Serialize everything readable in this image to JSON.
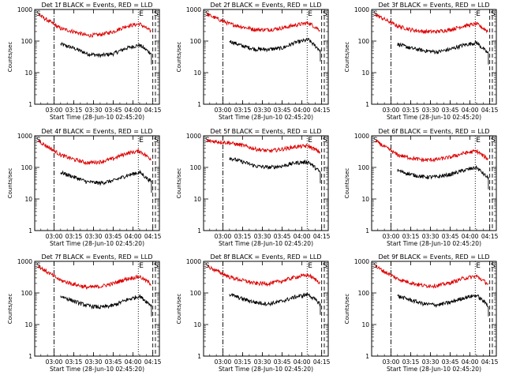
{
  "colors": {
    "events": "#000000",
    "lld": "#dd0000",
    "axis": "#000000",
    "background": "#ffffff"
  },
  "x_axis": {
    "start": "02:45:20",
    "end": "04:20",
    "ticks": [
      "03:00",
      "03:15",
      "03:30",
      "03:45",
      "04:00",
      "04:15"
    ]
  },
  "y_axis": {
    "scale": "log",
    "range": [
      1,
      1000
    ],
    "ticks": [
      "1",
      "10",
      "100",
      "1000"
    ]
  },
  "markers": {
    "left": "S",
    "right_inner": "E",
    "right_outer": "S"
  },
  "chart_data": [
    {
      "type": "line",
      "title": "Det 1f BLACK = Events, RED = LLD",
      "xlabel": "Start Time (28-Jun-10 02:45:20)",
      "ylabel": "Counts/sec",
      "ylim": [
        1,
        1000
      ],
      "x": [
        "02:48",
        "03:05",
        "03:15",
        "03:25",
        "03:35",
        "03:45",
        "03:55",
        "04:05",
        "04:14"
      ],
      "series": [
        {
          "name": "Events",
          "values": [
            null,
            80,
            60,
            40,
            35,
            40,
            60,
            75,
            40
          ]
        },
        {
          "name": "LLD",
          "values": [
            700,
            250,
            200,
            150,
            160,
            200,
            300,
            350,
            200
          ]
        }
      ],
      "vlines": [
        {
          "x": "03:00",
          "style": "dash-dot"
        },
        {
          "x": "04:04",
          "style": "dotted"
        },
        {
          "x": "04:15",
          "style": "dashed"
        },
        {
          "x": "04:17",
          "style": "dashed"
        }
      ]
    },
    {
      "type": "line",
      "title": "Det 2f BLACK = Events, RED = LLD",
      "xlabel": "Start Time (28-Jun-10 02:45:20)",
      "ylabel": "Counts/sec",
      "ylim": [
        1,
        1000
      ],
      "x": [
        "02:48",
        "03:05",
        "03:15",
        "03:25",
        "03:35",
        "03:45",
        "03:55",
        "04:05",
        "04:14"
      ],
      "series": [
        {
          "name": "Events",
          "values": [
            null,
            100,
            70,
            55,
            55,
            60,
            90,
            110,
            50
          ]
        },
        {
          "name": "LLD",
          "values": [
            700,
            350,
            280,
            230,
            230,
            260,
            320,
            380,
            220
          ]
        }
      ],
      "vlines": [
        {
          "x": "03:00",
          "style": "dash-dot"
        },
        {
          "x": "04:04",
          "style": "dotted"
        },
        {
          "x": "04:15",
          "style": "dashed"
        },
        {
          "x": "04:17",
          "style": "dashed"
        }
      ]
    },
    {
      "type": "line",
      "title": "Det 3f BLACK = Events, RED = LLD",
      "xlabel": "Start Time (28-Jun-10 02:45:20)",
      "ylabel": "Counts/sec",
      "ylim": [
        1,
        1000
      ],
      "x": [
        "02:48",
        "03:05",
        "03:15",
        "03:25",
        "03:35",
        "03:45",
        "03:55",
        "04:05",
        "04:14"
      ],
      "series": [
        {
          "name": "Events",
          "values": [
            null,
            80,
            60,
            50,
            45,
            55,
            75,
            90,
            40
          ]
        },
        {
          "name": "LLD",
          "values": [
            700,
            300,
            230,
            200,
            200,
            230,
            300,
            350,
            200
          ]
        }
      ],
      "vlines": [
        {
          "x": "03:00",
          "style": "dash-dot"
        },
        {
          "x": "04:04",
          "style": "dotted"
        },
        {
          "x": "04:15",
          "style": "dashed"
        },
        {
          "x": "04:17",
          "style": "dashed"
        }
      ]
    },
    {
      "type": "line",
      "title": "Det 4f BLACK = Events, RED = LLD",
      "xlabel": "Start Time (28-Jun-10 02:45:20)",
      "ylabel": "Counts/sec",
      "ylim": [
        1,
        1000
      ],
      "x": [
        "02:48",
        "03:05",
        "03:15",
        "03:25",
        "03:35",
        "03:45",
        "03:55",
        "04:05",
        "04:14"
      ],
      "series": [
        {
          "name": "Events",
          "values": [
            null,
            70,
            50,
            35,
            32,
            38,
            55,
            70,
            35
          ]
        },
        {
          "name": "LLD",
          "values": [
            700,
            250,
            180,
            140,
            150,
            190,
            280,
            330,
            180
          ]
        }
      ],
      "vlines": [
        {
          "x": "03:00",
          "style": "dash-dot"
        },
        {
          "x": "04:04",
          "style": "dotted"
        },
        {
          "x": "04:15",
          "style": "dashed"
        },
        {
          "x": "04:17",
          "style": "dashed"
        }
      ]
    },
    {
      "type": "line",
      "title": "Det 5f BLACK = Events, RED = LLD",
      "xlabel": "Start Time (28-Jun-10 02:45:20)",
      "ylabel": "Counts/sec",
      "ylim": [
        1,
        1000
      ],
      "x": [
        "02:48",
        "03:05",
        "03:15",
        "03:25",
        "03:35",
        "03:45",
        "03:55",
        "04:05",
        "04:14"
      ],
      "series": [
        {
          "name": "Events",
          "values": [
            null,
            200,
            150,
            110,
            100,
            110,
            140,
            150,
            70
          ]
        },
        {
          "name": "LLD",
          "values": [
            700,
            600,
            500,
            380,
            330,
            380,
            450,
            480,
            300
          ]
        }
      ],
      "vlines": [
        {
          "x": "03:00",
          "style": "dash-dot"
        },
        {
          "x": "04:04",
          "style": "dotted"
        },
        {
          "x": "04:15",
          "style": "dashed"
        },
        {
          "x": "04:17",
          "style": "dashed"
        }
      ]
    },
    {
      "type": "line",
      "title": "Det 6f BLACK = Events, RED = LLD",
      "xlabel": "Start Time (28-Jun-10 02:45:20)",
      "ylabel": "Counts/sec",
      "ylim": [
        1,
        1000
      ],
      "x": [
        "02:48",
        "03:05",
        "03:15",
        "03:25",
        "03:35",
        "03:45",
        "03:55",
        "04:05",
        "04:14"
      ],
      "series": [
        {
          "name": "Events",
          "values": [
            null,
            80,
            60,
            50,
            50,
            60,
            80,
            100,
            45
          ]
        },
        {
          "name": "LLD",
          "values": [
            700,
            250,
            200,
            170,
            180,
            210,
            280,
            330,
            180
          ]
        }
      ],
      "vlines": [
        {
          "x": "03:00",
          "style": "dash-dot"
        },
        {
          "x": "04:04",
          "style": "dotted"
        },
        {
          "x": "04:15",
          "style": "dashed"
        },
        {
          "x": "04:17",
          "style": "dashed"
        }
      ]
    },
    {
      "type": "line",
      "title": "Det 7f BLACK = Events, RED = LLD",
      "xlabel": "Start Time (28-Jun-10 02:45:20)",
      "ylabel": "Counts/sec",
      "ylim": [
        1,
        1000
      ],
      "x": [
        "02:48",
        "03:05",
        "03:15",
        "03:25",
        "03:35",
        "03:45",
        "03:55",
        "04:05",
        "04:14"
      ],
      "series": [
        {
          "name": "Events",
          "values": [
            null,
            80,
            55,
            40,
            35,
            40,
            60,
            80,
            40
          ]
        },
        {
          "name": "LLD",
          "values": [
            700,
            250,
            190,
            150,
            160,
            200,
            280,
            330,
            190
          ]
        }
      ],
      "vlines": [
        {
          "x": "03:00",
          "style": "dash-dot"
        },
        {
          "x": "04:04",
          "style": "dotted"
        },
        {
          "x": "04:15",
          "style": "dashed"
        },
        {
          "x": "04:17",
          "style": "dashed"
        }
      ]
    },
    {
      "type": "line",
      "title": "Det 8f BLACK = Events, RED = LLD",
      "xlabel": "Start Time (28-Jun-10 02:45:20)",
      "ylabel": "Counts/sec",
      "ylim": [
        1,
        1000
      ],
      "x": [
        "02:48",
        "03:05",
        "03:15",
        "03:25",
        "03:35",
        "03:45",
        "03:55",
        "04:05",
        "04:14"
      ],
      "series": [
        {
          "name": "Events",
          "values": [
            null,
            90,
            65,
            50,
            45,
            55,
            75,
            90,
            45
          ]
        },
        {
          "name": "LLD",
          "values": [
            700,
            320,
            250,
            200,
            200,
            240,
            320,
            370,
            210
          ]
        }
      ],
      "vlines": [
        {
          "x": "03:00",
          "style": "dash-dot"
        },
        {
          "x": "04:04",
          "style": "dotted"
        },
        {
          "x": "04:15",
          "style": "dashed"
        },
        {
          "x": "04:17",
          "style": "dashed"
        }
      ]
    },
    {
      "type": "line",
      "title": "Det 9f BLACK = Events, RED = LLD",
      "xlabel": "Start Time (28-Jun-10 02:45:20)",
      "ylabel": "Counts/sec",
      "ylim": [
        1,
        1000
      ],
      "x": [
        "02:48",
        "03:05",
        "03:15",
        "03:25",
        "03:35",
        "03:45",
        "03:55",
        "04:05",
        "04:14"
      ],
      "series": [
        {
          "name": "Events",
          "values": [
            null,
            80,
            60,
            45,
            42,
            50,
            70,
            85,
            40
          ]
        },
        {
          "name": "LLD",
          "values": [
            700,
            280,
            210,
            170,
            170,
            210,
            290,
            340,
            190
          ]
        }
      ],
      "vlines": [
        {
          "x": "03:00",
          "style": "dash-dot"
        },
        {
          "x": "04:04",
          "style": "dotted"
        },
        {
          "x": "04:15",
          "style": "dashed"
        },
        {
          "x": "04:17",
          "style": "dashed"
        }
      ]
    }
  ]
}
